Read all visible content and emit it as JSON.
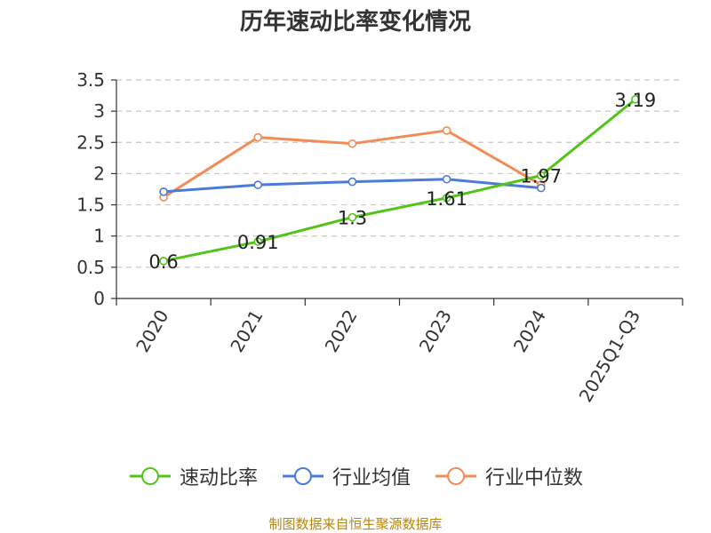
{
  "chart_data": {
    "type": "line",
    "title": "历年速动比率变化情况",
    "categories": [
      "2020",
      "2021",
      "2022",
      "2023",
      "2024",
      "2025Q1-Q3"
    ],
    "series": [
      {
        "name": "速动比率",
        "color": "#52c41a",
        "values": [
          0.6,
          0.91,
          1.3,
          1.61,
          1.97,
          3.19
        ],
        "labels": [
          "0.6",
          "0.91",
          "1.3",
          "1.61",
          "1.97",
          "3.19"
        ]
      },
      {
        "name": "行业均值",
        "color": "#4a7bd8",
        "values": [
          1.71,
          1.82,
          1.87,
          1.91,
          1.77,
          null
        ]
      },
      {
        "name": "行业中位数",
        "color": "#f28b54",
        "values": [
          1.62,
          2.58,
          2.48,
          2.69,
          1.82,
          null
        ]
      }
    ],
    "ylim": [
      0,
      3.5
    ],
    "yticks": [
      "0",
      "0.5",
      "1",
      "1.5",
      "2",
      "2.5",
      "3",
      "3.5"
    ],
    "grid": true,
    "legend_position": "bottom"
  },
  "footer": {
    "source": "制图数据来自恒生聚源数据库"
  }
}
